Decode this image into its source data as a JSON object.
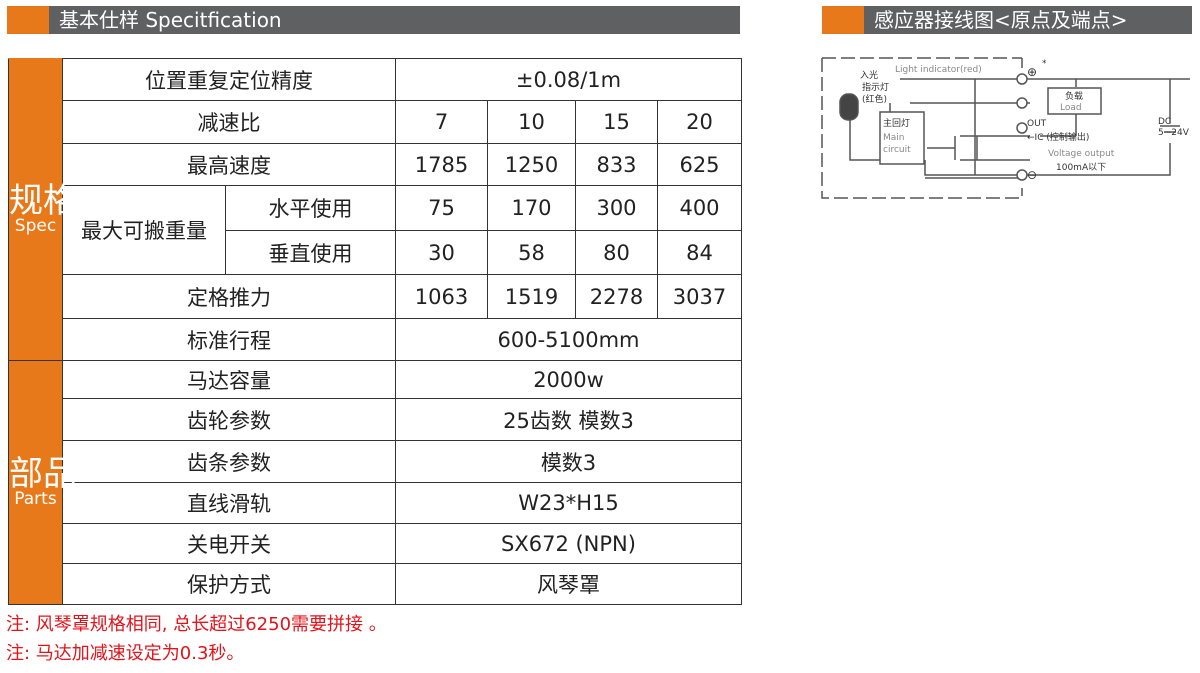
{
  "left_header": {
    "title": "基本仕样 Specitfication"
  },
  "right_header": {
    "title": "感应器接线图<原点及端点>"
  },
  "colors": {
    "accent": "#e8791a",
    "header_bg": "#5f6062",
    "note": "#e3131b"
  },
  "spec": {
    "side_zh": "规格",
    "side_en": "Spec",
    "rows": [
      {
        "label": "位置重复定位精度",
        "values": [
          "±0.08/1m"
        ]
      },
      {
        "label": "减速比",
        "values": [
          "7",
          "10",
          "15",
          "20"
        ]
      },
      {
        "label": "最高速度",
        "values": [
          "1785",
          "1250",
          "833",
          "625"
        ]
      },
      {
        "label": "最大可搬重量",
        "sub": "水平使用",
        "values": [
          "75",
          "170",
          "300",
          "400"
        ]
      },
      {
        "sub": "垂直使用",
        "values": [
          "30",
          "58",
          "80",
          "84"
        ]
      },
      {
        "label": "定格推力",
        "values": [
          "1063",
          "1519",
          "2278",
          "3037"
        ]
      },
      {
        "label": "标准行程",
        "values": [
          "600-5100mm"
        ]
      }
    ]
  },
  "parts": {
    "side_zh": "部品",
    "side_en": "Parts",
    "rows": [
      {
        "label": "马达容量",
        "values": [
          "2000w"
        ]
      },
      {
        "label": "齿轮参数",
        "values": [
          "25齿数  模数3"
        ]
      },
      {
        "label": "齿条参数",
        "values": [
          "模数3"
        ]
      },
      {
        "label": "直线滑轨",
        "values": [
          "W23*H15"
        ]
      },
      {
        "label": "关电开关",
        "values": [
          "SX672 (NPN)"
        ]
      },
      {
        "label": "保护方式",
        "values": [
          "风琴罩"
        ]
      }
    ]
  },
  "notes": [
    "注: 风琴罩规格相同, 总长超过6250需要拼接 。",
    "注: 马达加减速设定为0.3秒。"
  ],
  "diagram": {
    "light_indicator": "Light indicator(red)",
    "led_label_1": "入光",
    "led_label_2": "指示灯",
    "led_label_3": "(红色)",
    "main_zh": "主回灯",
    "main_en_1": "Main",
    "main_en_2": "circuit",
    "load_zh": "负载",
    "load_en": "Load",
    "plus": "⊕",
    "star": "*",
    "minus_term": "⊖",
    "out": "OUT",
    "ic": "←IC (控制输出)",
    "voltage": "Voltage output",
    "current": "100mA以下",
    "dc": "DC",
    "dc_v": "5~24V"
  }
}
